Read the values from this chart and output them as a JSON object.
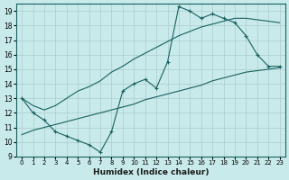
{
  "xlabel": "Humidex (Indice chaleur)",
  "ylabel": "",
  "bg_color": "#c8eaea",
  "grid_color": "#aacccc",
  "line_color": "#1a6060",
  "xlim": [
    -0.5,
    23.5
  ],
  "ylim": [
    9,
    19.5
  ],
  "xticks": [
    0,
    1,
    2,
    3,
    4,
    5,
    6,
    7,
    8,
    9,
    10,
    11,
    12,
    13,
    14,
    15,
    16,
    17,
    18,
    19,
    20,
    21,
    22,
    23
  ],
  "yticks": [
    9,
    10,
    11,
    12,
    13,
    14,
    15,
    16,
    17,
    18,
    19
  ],
  "main_line": [
    13.0,
    12.0,
    11.5,
    10.7,
    10.4,
    10.1,
    9.8,
    9.3,
    10.7,
    13.5,
    14.0,
    14.3,
    13.7,
    15.5,
    19.3,
    19.0,
    18.5,
    18.8,
    18.5,
    18.2,
    17.3,
    16.0,
    15.2,
    15.2
  ],
  "upper_line": [
    13.0,
    12.5,
    12.2,
    12.5,
    13.0,
    13.5,
    13.8,
    14.2,
    14.8,
    15.2,
    15.7,
    16.1,
    16.5,
    16.9,
    17.3,
    17.6,
    17.9,
    18.1,
    18.3,
    18.5,
    18.5,
    18.4,
    18.3,
    18.2
  ],
  "lower_line": [
    10.5,
    10.8,
    11.0,
    11.2,
    11.4,
    11.6,
    11.8,
    12.0,
    12.2,
    12.4,
    12.6,
    12.9,
    13.1,
    13.3,
    13.5,
    13.7,
    13.9,
    14.2,
    14.4,
    14.6,
    14.8,
    14.9,
    15.0,
    15.1
  ]
}
